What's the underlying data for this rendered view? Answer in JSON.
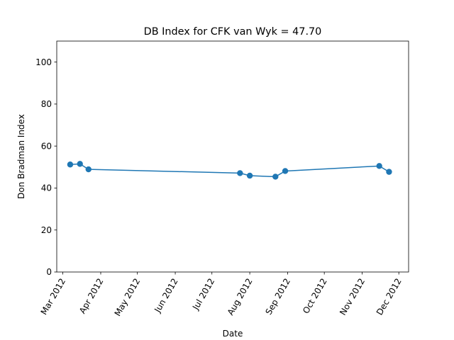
{
  "chart_data": {
    "type": "line",
    "title": "DB Index for CFK van Wyk = 47.70",
    "xlabel": "Date",
    "ylabel": "Don Bradman Index",
    "xlim": [
      "2012-02-25",
      "2012-12-09"
    ],
    "ylim": [
      0,
      110
    ],
    "grid": false,
    "x_ticks": [
      "2012-03-01",
      "2012-04-01",
      "2012-05-01",
      "2012-06-01",
      "2012-07-01",
      "2012-08-01",
      "2012-09-01",
      "2012-10-01",
      "2012-11-01",
      "2012-12-01"
    ],
    "x_tick_labels": [
      "Mar 2012",
      "Apr 2012",
      "May 2012",
      "Jun 2012",
      "Jul 2012",
      "Aug 2012",
      "Sep 2012",
      "Oct 2012",
      "Nov 2012",
      "Dec 2012"
    ],
    "y_ticks": [
      0,
      20,
      40,
      60,
      80,
      100
    ],
    "y_tick_labels": [
      "0",
      "20",
      "40",
      "60",
      "80",
      "100"
    ],
    "series": [
      {
        "color": "#1f77b4",
        "x": [
          "2012-03-07",
          "2012-03-15",
          "2012-03-22",
          "2012-07-24",
          "2012-08-01",
          "2012-08-22",
          "2012-08-30",
          "2012-11-15",
          "2012-11-23"
        ],
        "y": [
          51.2,
          51.5,
          48.9,
          47.1,
          45.9,
          45.4,
          48.1,
          50.5,
          47.7
        ]
      }
    ]
  }
}
